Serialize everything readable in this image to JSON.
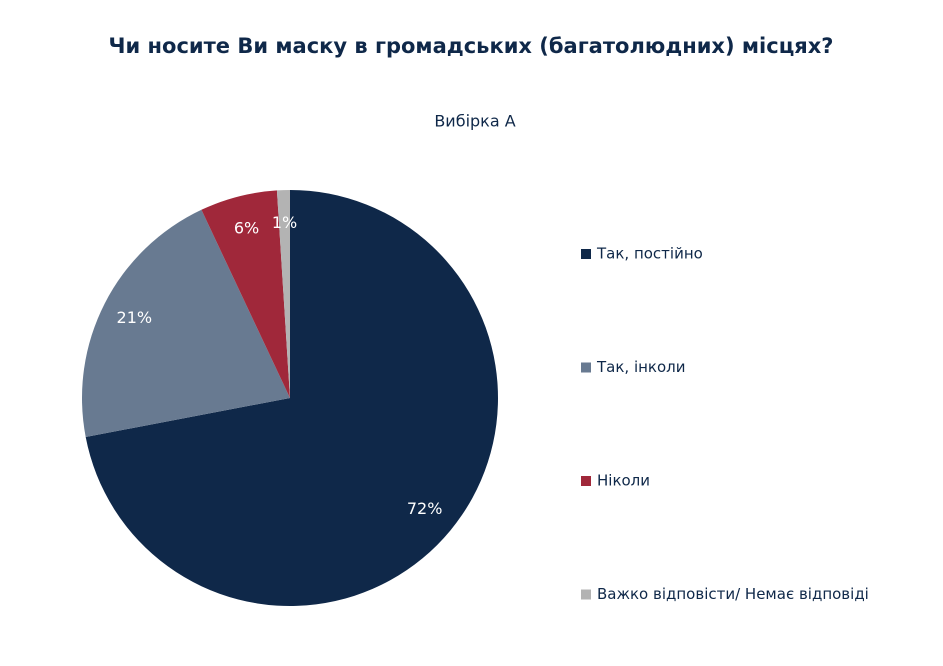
{
  "chart_data": {
    "type": "pie",
    "title": "Чи носите Ви маску в громадських (багатолюдних) місцях?",
    "subtitle": "Вибірка А",
    "categories": [
      "Так, постійно",
      "Так, інколи",
      "Ніколи",
      "Важко відповісти/ Немає відповіді"
    ],
    "values": [
      72,
      21,
      6,
      1
    ],
    "value_labels": [
      "72%",
      "21%",
      "6%",
      "1%"
    ],
    "colors": [
      "#0f2849",
      "#687a91",
      "#a0283a",
      "#b3b3b3"
    ],
    "legend": "right"
  }
}
